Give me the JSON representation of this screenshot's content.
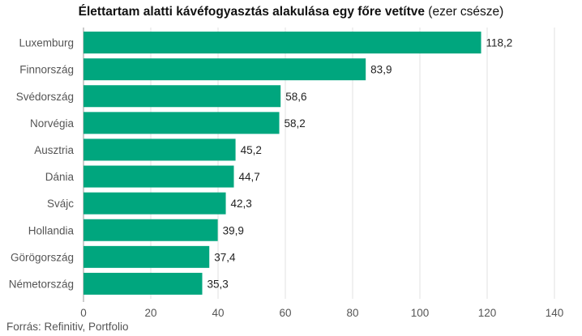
{
  "title_bold": "Élettartam alatti kávéfogyasztás alakulása egy főre vetítve",
  "title_unit": "(ezer csésze)",
  "source": "Forrás: Refinitiv, Portfolio",
  "colors": {
    "bar": "#00a67e",
    "grid": "#e0e0e0",
    "axis": "#999999"
  },
  "chart_data": {
    "type": "bar",
    "orientation": "horizontal",
    "title": "Élettartam alatti kávéfogyasztás alakulása egy főre vetítve (ezer csésze)",
    "categories": [
      "Luxemburg",
      "Finnország",
      "Svédország",
      "Norvégia",
      "Ausztria",
      "Dánia",
      "Svájc",
      "Hollandia",
      "Görögország",
      "Németország"
    ],
    "values": [
      118.2,
      83.9,
      58.6,
      58.2,
      45.2,
      44.7,
      42.3,
      39.9,
      37.4,
      35.3
    ],
    "value_labels": [
      "118,2",
      "83,9",
      "58,6",
      "58,2",
      "45,2",
      "44,7",
      "42,3",
      "39,9",
      "37,4",
      "35,3"
    ],
    "xlim": [
      0,
      140
    ],
    "xticks": [
      0,
      20,
      40,
      60,
      80,
      100,
      120,
      140
    ],
    "grid": true
  }
}
